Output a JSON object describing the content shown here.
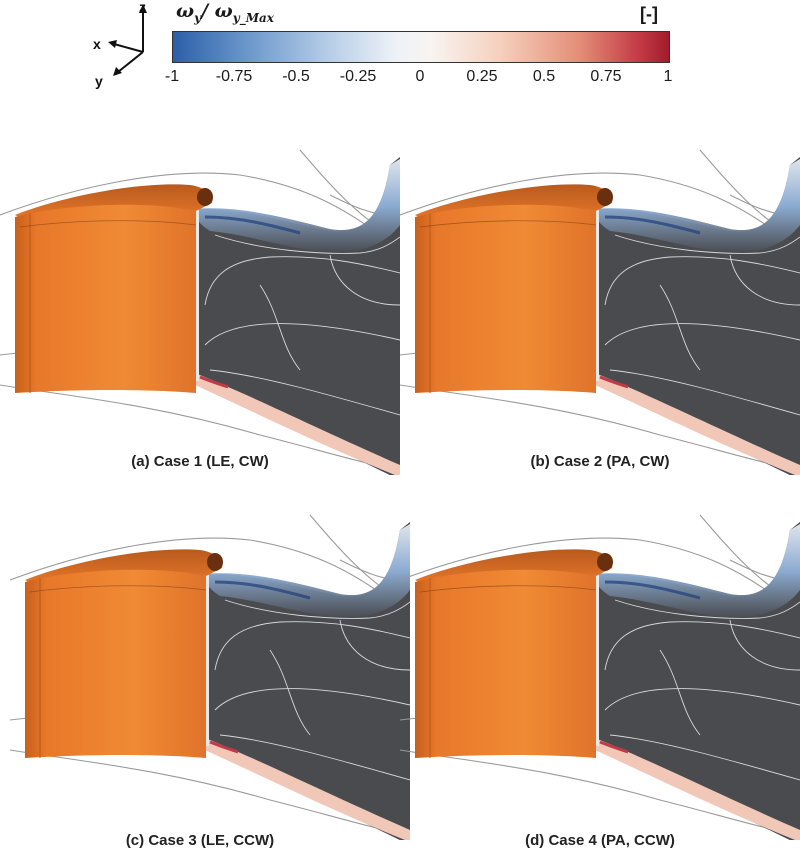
{
  "colorbar": {
    "title_main": "ω",
    "title_sub1": "y",
    "title_slash": "/ ω",
    "title_sub2": "y_Max",
    "unit": "[-]",
    "ticks": [
      "-1",
      "-0.75",
      "-0.5",
      "-0.25",
      "0",
      "0.25",
      "0.5",
      "0.75",
      "1"
    ]
  },
  "axes": {
    "z": "z",
    "x": "x",
    "y": "y"
  },
  "panels": [
    {
      "caption": "(a) Case 1 (LE, CW)"
    },
    {
      "caption": "(b) Case 2 (PA, CW)"
    },
    {
      "caption": "(c) Case 3 (LE, CCW)"
    },
    {
      "caption": "(d) Case 4 (PA, CCW)"
    }
  ],
  "colors": {
    "blade": "#e8782a",
    "blade_dark": "#c8601c",
    "plane": "#4a4b4f",
    "negative": "#2b5fa8",
    "positive": "#a11c2c"
  }
}
